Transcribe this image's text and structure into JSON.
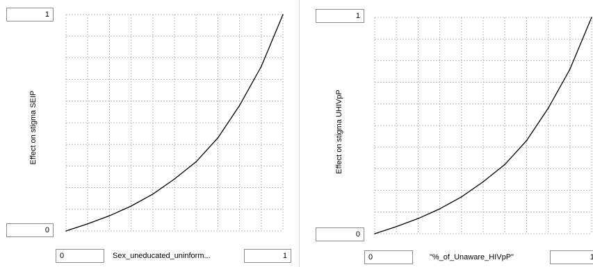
{
  "chart_data": [
    {
      "type": "line",
      "xlabel": "Sex_uneducated_uninform...",
      "ylabel": "Effect on stigma SEIP",
      "xlim": [
        0,
        1
      ],
      "ylim": [
        0,
        1
      ],
      "grid": true,
      "x_min_label": "0",
      "x_max_label": "1",
      "y_min_label": "0",
      "y_max_label": "1",
      "x": [
        0,
        0.1,
        0.2,
        0.3,
        0.4,
        0.5,
        0.6,
        0.7,
        0.8,
        0.9,
        1.0
      ],
      "y": [
        0,
        0.033,
        0.07,
        0.115,
        0.17,
        0.24,
        0.32,
        0.43,
        0.58,
        0.76,
        1.0
      ]
    },
    {
      "type": "line",
      "xlabel": "\"%_of_Unaware_HIVpP\"",
      "ylabel": "Effect on stigma UHIVpP",
      "xlim": [
        0,
        1
      ],
      "ylim": [
        0,
        1
      ],
      "grid": true,
      "x_min_label": "0",
      "x_max_label": "1",
      "y_min_label": "0",
      "y_max_label": "1",
      "x": [
        0,
        0.1,
        0.2,
        0.3,
        0.4,
        0.5,
        0.6,
        0.7,
        0.8,
        0.9,
        1.0
      ],
      "y": [
        0,
        0.033,
        0.07,
        0.115,
        0.17,
        0.24,
        0.32,
        0.43,
        0.58,
        0.76,
        1.0
      ]
    }
  ]
}
